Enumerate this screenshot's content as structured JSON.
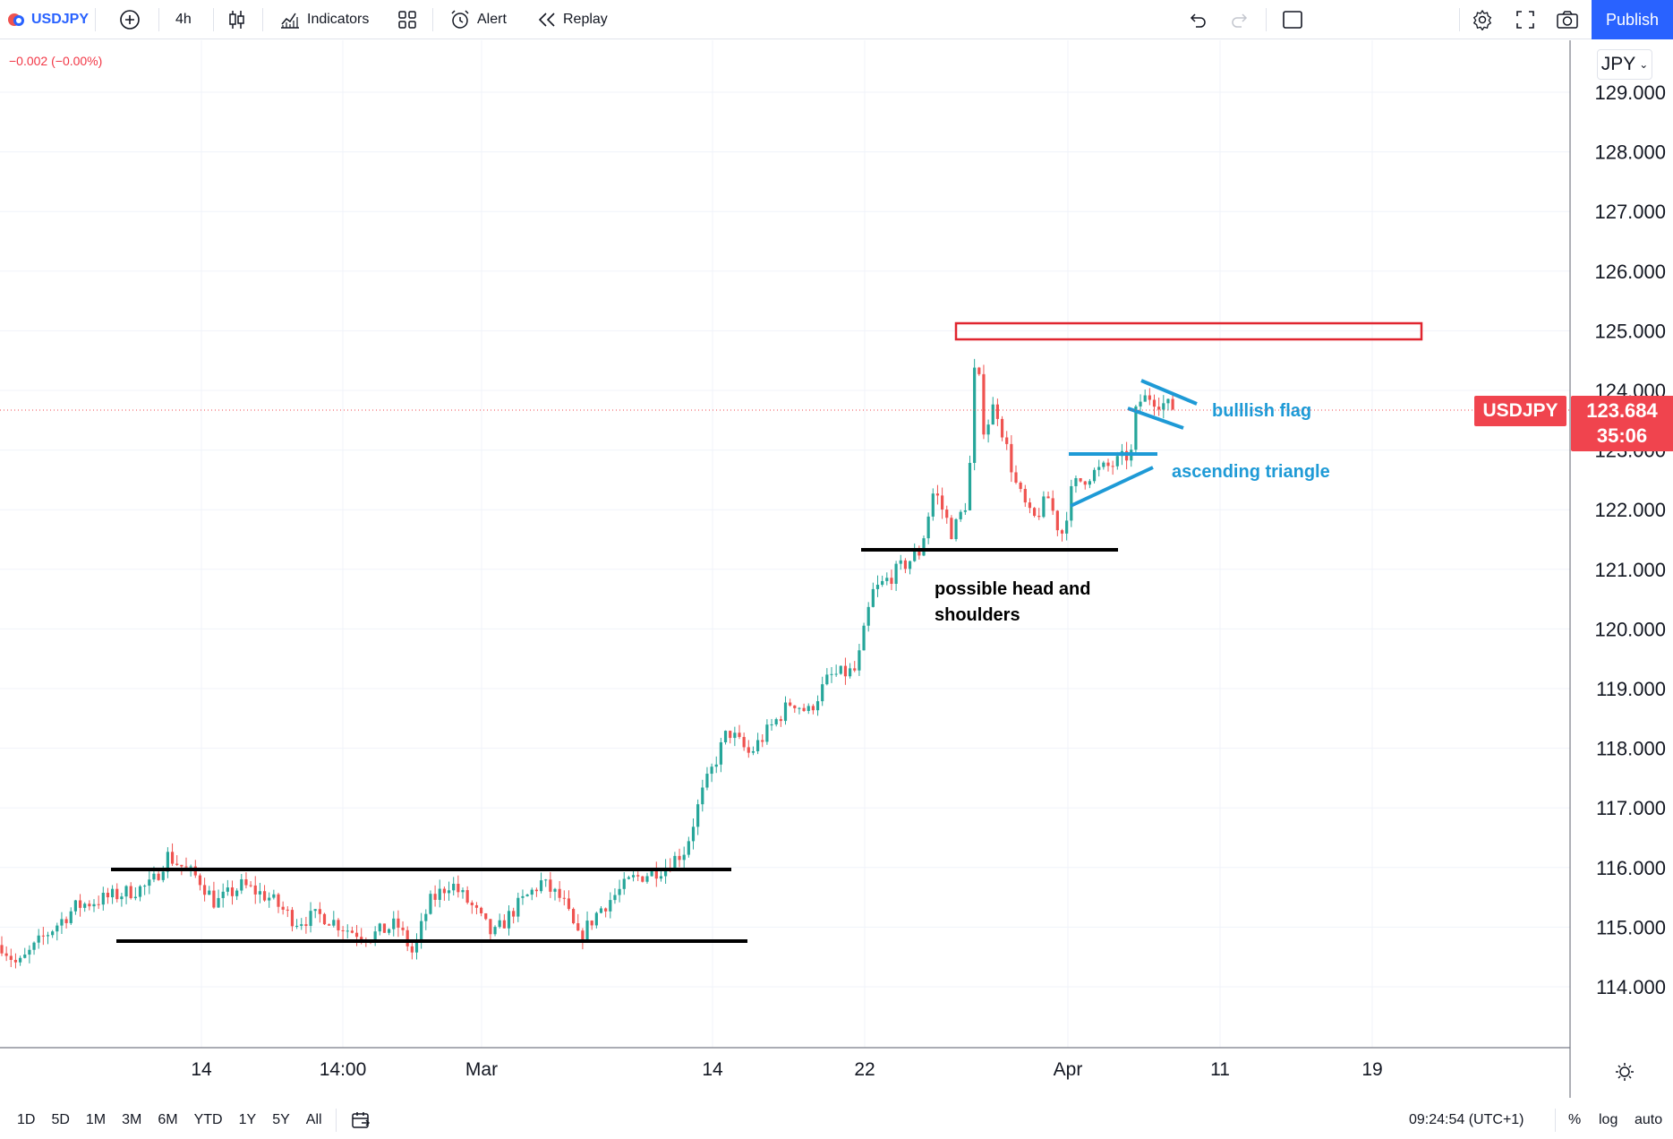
{
  "toolbar": {
    "symbol": "USDJPY",
    "interval": "4h",
    "indicators_label": "Indicators",
    "alert_label": "Alert",
    "replay_label": "Replay",
    "publish_label": "Publish"
  },
  "legend": {
    "change": "−0.002 (−0.00%)"
  },
  "price_scale": {
    "currency": "JPY",
    "ticks": [
      "129.000",
      "128.000",
      "127.000",
      "126.000",
      "125.000",
      "124.000",
      "123.000",
      "122.000",
      "121.000",
      "120.000",
      "119.000",
      "118.000",
      "117.000",
      "116.000",
      "115.000",
      "114.000"
    ],
    "current_symbol": "USDJPY",
    "current_price": "123.684",
    "countdown": "35:06"
  },
  "time_scale": {
    "ticks": [
      "14",
      "14:00",
      "Mar",
      "14",
      "22",
      "Apr",
      "11",
      "19"
    ]
  },
  "annotations": {
    "bullish_flag": "bulllish flag",
    "ascending_triangle": "ascending triangle",
    "head_shoulders_line1": "possible head and",
    "head_shoulders_line2": "shoulders"
  },
  "bottom_bar": {
    "ranges": [
      "1D",
      "5D",
      "1M",
      "3M",
      "6M",
      "YTD",
      "1Y",
      "5Y",
      "All"
    ],
    "clock": "09:24:54 (UTC+1)",
    "percent_label": "%",
    "log_label": "log",
    "auto_label": "auto"
  },
  "colors": {
    "up": "#26a69a",
    "down": "#ef5350",
    "accent": "#2962ff",
    "price_tag": "#f0444e",
    "annotation_blue": "#1e9ad6",
    "resistance_box": "#e0252f"
  },
  "chart_data": {
    "type": "candlestick",
    "symbol": "USDJPY",
    "interval": "4h",
    "ylim": [
      113,
      129.8
    ],
    "current_price": 123.684,
    "path_anchors": [
      [
        0,
        114.7
      ],
      [
        15,
        114.35
      ],
      [
        40,
        114.85
      ],
      [
        70,
        115.35
      ],
      [
        110,
        115.55
      ],
      [
        140,
        115.7
      ],
      [
        155,
        116.2
      ],
      [
        170,
        116.0
      ],
      [
        185,
        115.8
      ],
      [
        200,
        115.4
      ],
      [
        225,
        115.7
      ],
      [
        250,
        115.5
      ],
      [
        275,
        115.1
      ],
      [
        300,
        115.2
      ],
      [
        325,
        114.95
      ],
      [
        345,
        114.85
      ],
      [
        370,
        115.05
      ],
      [
        385,
        114.55
      ],
      [
        400,
        115.4
      ],
      [
        420,
        115.75
      ],
      [
        440,
        115.35
      ],
      [
        460,
        114.85
      ],
      [
        480,
        115.3
      ],
      [
        505,
        115.75
      ],
      [
        525,
        115.45
      ],
      [
        540,
        114.8
      ],
      [
        560,
        115.3
      ],
      [
        590,
        115.8
      ],
      [
        620,
        116.0
      ],
      [
        640,
        116.3
      ],
      [
        655,
        117.2
      ],
      [
        680,
        118.3
      ],
      [
        700,
        117.9
      ],
      [
        720,
        118.35
      ],
      [
        740,
        118.8
      ],
      [
        755,
        118.6
      ],
      [
        775,
        119.2
      ],
      [
        800,
        119.3
      ],
      [
        815,
        120.6
      ],
      [
        840,
        121.0
      ],
      [
        860,
        121.3
      ],
      [
        873,
        122.35
      ],
      [
        890,
        121.6
      ],
      [
        905,
        122.2
      ],
      [
        912,
        124.7
      ],
      [
        920,
        123.3
      ],
      [
        930,
        123.8
      ],
      [
        940,
        123.1
      ],
      [
        950,
        122.4
      ],
      [
        965,
        121.8
      ],
      [
        980,
        122.2
      ],
      [
        992,
        121.55
      ],
      [
        1003,
        122.4
      ],
      [
        1020,
        122.6
      ],
      [
        1040,
        122.75
      ],
      [
        1058,
        122.95
      ],
      [
        1063,
        123.8
      ],
      [
        1075,
        123.9
      ],
      [
        1090,
        123.75
      ],
      [
        1100,
        123.7
      ]
    ]
  }
}
